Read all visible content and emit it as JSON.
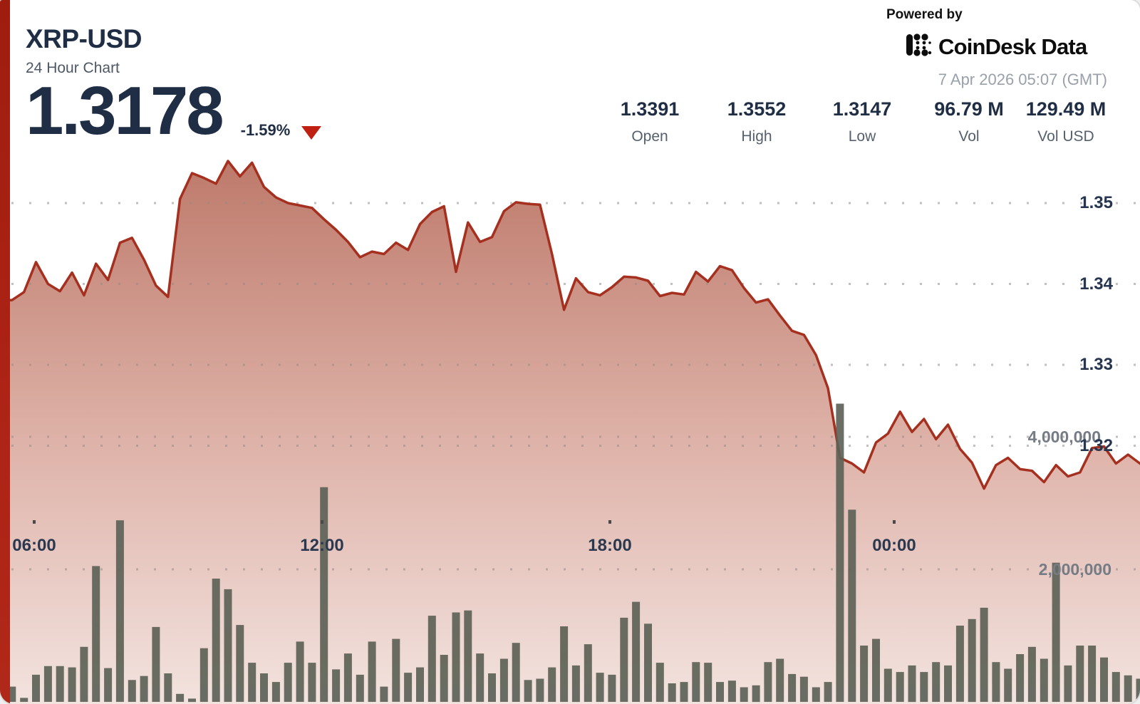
{
  "header": {
    "symbol": "XRP-USD",
    "subtitle": "24 Hour Chart",
    "price": "1.3178",
    "change": "-1.59%",
    "change_direction": "down"
  },
  "stats": [
    {
      "value": "1.3391",
      "label": "Open"
    },
    {
      "value": "1.3552",
      "label": "High"
    },
    {
      "value": "1.3147",
      "label": "Low"
    },
    {
      "value": "96.79 M",
      "label": "Vol"
    },
    {
      "value": "129.49 M",
      "label": "Vol USD"
    }
  ],
  "branding": {
    "powered_by": "Powered by",
    "logo_text": "CoinDesk Data",
    "timestamp": "7 Apr 2026 05:07 (GMT)"
  },
  "colors": {
    "accent_red": "#ad2315",
    "price_line": "#a5301f",
    "area_top": "#bd796a",
    "area_mid": "#ddb0a6",
    "area_bottom": "#f3e3df",
    "volume_bar": "#5d6257",
    "navy_text": "#1f2e45",
    "gray_label": "#55606e",
    "muted_gray": "#99a1ab",
    "triangle_red": "#bf2012",
    "grid_dot": "#938c87"
  },
  "chart_data": {
    "type": "area",
    "title": "XRP-USD 24 Hour Chart",
    "last": 1.3178,
    "change_pct": -1.59,
    "open": 1.3391,
    "high": 1.3552,
    "low": 1.3147,
    "volume": [
      330000,
      230000,
      60000,
      410000,
      540000,
      540000,
      520000,
      830000,
      2050000,
      510000,
      2740000,
      330000,
      390000,
      1130000,
      430000,
      120000,
      50000,
      810000,
      1860000,
      1700000,
      1160000,
      590000,
      430000,
      300000,
      590000,
      910000,
      590000,
      3240000,
      490000,
      730000,
      410000,
      910000,
      230000,
      950000,
      440000,
      520000,
      1300000,
      710000,
      1350000,
      1380000,
      730000,
      430000,
      650000,
      890000,
      330000,
      350000,
      520000,
      1140000,
      550000,
      870000,
      440000,
      410000,
      1270000,
      1510000,
      1180000,
      590000,
      280000,
      300000,
      600000,
      590000,
      300000,
      320000,
      220000,
      250000,
      600000,
      650000,
      420000,
      380000,
      220000,
      300000,
      4500000,
      2900000,
      850000,
      950000,
      500000,
      450000,
      550000,
      450000,
      600000,
      550000,
      1150000,
      1250000,
      1420000,
      600000,
      500000,
      720000,
      830000,
      650000,
      2100000,
      550000,
      850000,
      850000,
      670000,
      450000,
      400000,
      350000
    ],
    "volume_usd": "129.49 M",
    "x_axis": {
      "labels": [
        "06:00",
        "12:00",
        "18:00",
        "00:00"
      ]
    },
    "price_axis": {
      "ticks": [
        1.35,
        1.34,
        1.33,
        1.32
      ],
      "labels": [
        "1.35",
        "1.34",
        "1.33",
        "1.32"
      ]
    },
    "volume_axis": {
      "ticks": [
        4000000,
        2000000
      ],
      "labels": [
        "4,000,000",
        "2,000,000"
      ]
    },
    "price": [
      1.338,
      1.338,
      1.339,
      1.3427,
      1.34,
      1.3391,
      1.3414,
      1.3386,
      1.3425,
      1.3405,
      1.3451,
      1.3457,
      1.343,
      1.3398,
      1.3384,
      1.3505,
      1.3537,
      1.3531,
      1.3524,
      1.3552,
      1.3533,
      1.355,
      1.352,
      1.3507,
      1.35,
      1.3497,
      1.3494,
      1.348,
      1.3467,
      1.3452,
      1.3433,
      1.344,
      1.3437,
      1.3451,
      1.3442,
      1.3474,
      1.3489,
      1.3496,
      1.3415,
      1.3476,
      1.3452,
      1.3458,
      1.349,
      1.3501,
      1.3499,
      1.3498,
      1.3437,
      1.3368,
      1.3407,
      1.339,
      1.3386,
      1.3396,
      1.3409,
      1.3408,
      1.3404,
      1.3385,
      1.3389,
      1.3387,
      1.3415,
      1.3403,
      1.3422,
      1.3417,
      1.3395,
      1.3377,
      1.3381,
      1.3361,
      1.3342,
      1.3337,
      1.3312,
      1.3271,
      1.3185,
      1.3178,
      1.3167,
      1.3204,
      1.3215,
      1.3242,
      1.3217,
      1.3233,
      1.3208,
      1.3226,
      1.3196,
      1.3179,
      1.3147,
      1.3176,
      1.3185,
      1.3171,
      1.3169,
      1.3155,
      1.3176,
      1.3162,
      1.3167,
      1.3197,
      1.3199,
      1.3178,
      1.3189,
      1.3178
    ]
  }
}
